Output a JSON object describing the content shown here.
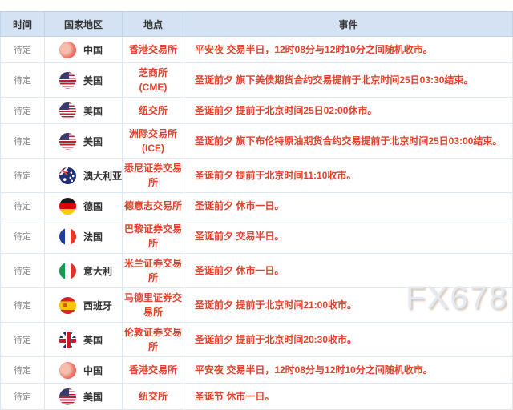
{
  "watermark": "FX678",
  "colors": {
    "accent_red": "#e2412c",
    "header_bg": "#d4e2f4",
    "border_blue": "#dfe9f5",
    "time_gray": "#8a8a8a"
  },
  "table": {
    "columns": [
      {
        "key": "time",
        "label": "时间"
      },
      {
        "key": "country",
        "label": "国家地区"
      },
      {
        "key": "location",
        "label": "地点"
      },
      {
        "key": "event",
        "label": "事件"
      }
    ],
    "rows": [
      {
        "time": "待定",
        "country": "中国",
        "flag": "cn",
        "flag_icon": "flag-china-icon",
        "location": "香港交易所",
        "event": "平安夜 交易半日，12时08分与12时10分之间随机收市。"
      },
      {
        "time": "待定",
        "country": "美国",
        "flag": "us",
        "flag_icon": "flag-usa-icon",
        "location": "芝商所 (CME)",
        "event": "圣诞前夕 旗下美债期货合约交易提前于北京时间25日03:30结束。"
      },
      {
        "time": "待定",
        "country": "美国",
        "flag": "us",
        "flag_icon": "flag-usa-icon",
        "location": "纽交所",
        "event": "圣诞前夕 提前于北京时间25日02:00休市。"
      },
      {
        "time": "待定",
        "country": "美国",
        "flag": "us",
        "flag_icon": "flag-usa-icon",
        "location": "洲际交易所 (ICE)",
        "event": "圣诞前夕 旗下布伦特原油期货合约交易提前于北京时间25日03:00结束。"
      },
      {
        "time": "待定",
        "country": "澳大利亚",
        "flag": "au",
        "flag_icon": "flag-australia-icon",
        "location": "悉尼证券交易所",
        "event": "圣诞前夕 提前于北京时间11:10收市。"
      },
      {
        "time": "待定",
        "country": "德国",
        "flag": "de",
        "flag_icon": "flag-germany-icon",
        "location": "德意志交易所",
        "event": "圣诞前夕 休市一日。"
      },
      {
        "time": "待定",
        "country": "法国",
        "flag": "fr",
        "flag_icon": "flag-france-icon",
        "location": "巴黎证券交易所",
        "event": "圣诞前夕 交易半日。"
      },
      {
        "time": "待定",
        "country": "意大利",
        "flag": "it",
        "flag_icon": "flag-italy-icon",
        "location": "米兰证券交易所",
        "event": "圣诞前夕 休市一日。"
      },
      {
        "time": "待定",
        "country": "西班牙",
        "flag": "es",
        "flag_icon": "flag-spain-icon",
        "location": "马德里证券交易所",
        "event": "圣诞前夕 提前于北京时间21:00收市。"
      },
      {
        "time": "待定",
        "country": "英国",
        "flag": "gb",
        "flag_icon": "flag-uk-icon",
        "location": "伦敦证券交易所",
        "event": "圣诞前夕 提前于北京时间20:30收市。"
      },
      {
        "time": "待定",
        "country": "中国",
        "flag": "cn",
        "flag_icon": "flag-china-icon",
        "location": "香港交易所",
        "event": "平安夜 交易半日，12时08分与12时10分之间随机收市。"
      },
      {
        "time": "待定",
        "country": "美国",
        "flag": "us",
        "flag_icon": "flag-usa-icon",
        "location": "纽交所",
        "event": "圣诞节 休市一日。"
      }
    ]
  }
}
